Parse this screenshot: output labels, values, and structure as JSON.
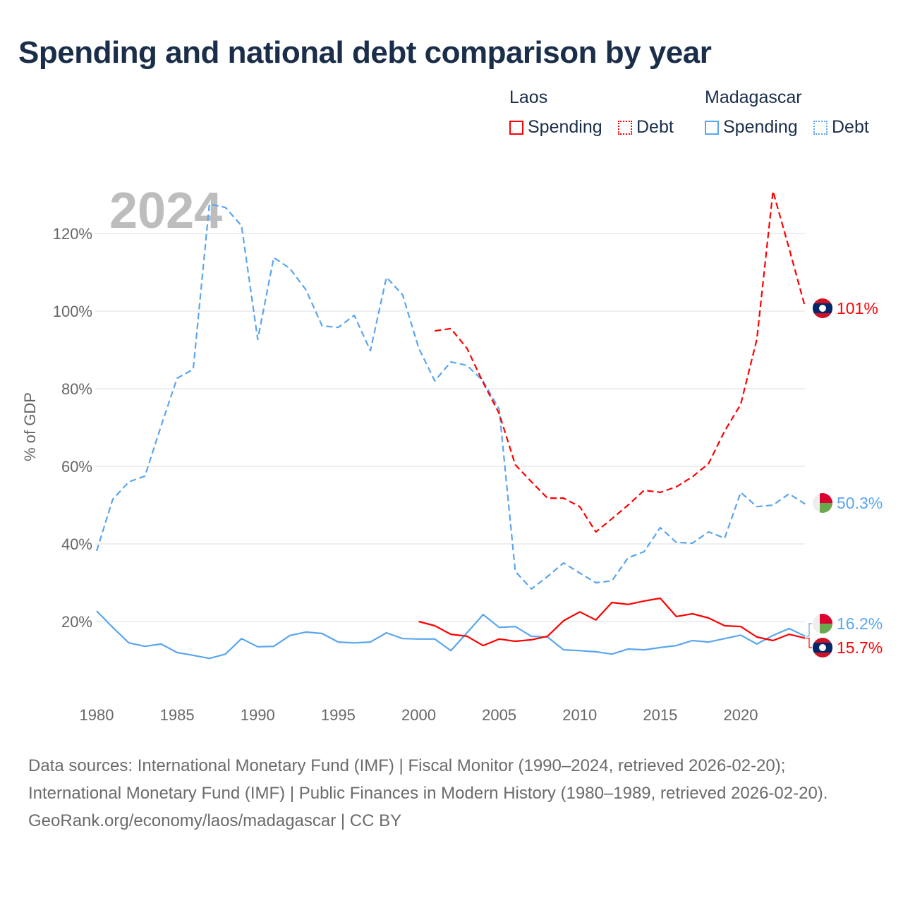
{
  "title": "Spending and national debt comparison by year",
  "legend": {
    "groups": [
      {
        "country": "Laos",
        "items": [
          {
            "label": "Spending",
            "style": "solid"
          },
          {
            "label": "Debt",
            "style": "dotted"
          }
        ],
        "color": "#ff0000"
      },
      {
        "country": "Madagascar",
        "items": [
          {
            "label": "Spending",
            "style": "solid"
          },
          {
            "label": "Debt",
            "style": "dotted"
          }
        ],
        "color": "#5aa6ee"
      }
    ]
  },
  "year_watermark": "2024",
  "footer": {
    "sources": "Data sources: International Monetary Fund (IMF) | Fiscal Monitor (1990–2024, retrieved 2026-02-20); International Monetary Fund (IMF) | Public Finances in Modern History (1980–1989, retrieved 2026-02-20).",
    "credit": "GeoRank.org/economy/laos/madagascar | CC BY"
  },
  "chart_data": {
    "type": "line",
    "title": "Spending and national debt comparison by year",
    "xlabel": "",
    "ylabel": "% of GDP",
    "xlim": [
      1980,
      2024
    ],
    "ylim": [
      0,
      130
    ],
    "grid": true,
    "legend_position": "top-right",
    "x_ticks": [
      1980,
      1985,
      1990,
      1995,
      2000,
      2005,
      2010,
      2015,
      2020
    ],
    "y_ticks": [
      20,
      40,
      60,
      80,
      100,
      120
    ],
    "y_tick_labels": [
      "20%",
      "40%",
      "60%",
      "80%",
      "100%",
      "120%"
    ],
    "series": [
      {
        "name": "Madagascar Debt",
        "country": "Madagascar",
        "color": "#5aa6ee",
        "dash": true,
        "start": 1980,
        "values": [
          38.2,
          51.5,
          56,
          57.5,
          70.4,
          82.7,
          85,
          127.6,
          126.7,
          122,
          92.7,
          113.8,
          111,
          105.5,
          96.2,
          95.8,
          98.9,
          89.8,
          108.7,
          104.2,
          90.5,
          82,
          86.9,
          86,
          82,
          74.7,
          32.9,
          28.4,
          31.6,
          35.1,
          32.5,
          30,
          30.5,
          36.4,
          38,
          44.2,
          40.4,
          40.2,
          43.1,
          41.5,
          53.3,
          49.6,
          50,
          52.9,
          50.3
        ],
        "end_label": "50.3%"
      },
      {
        "name": "Laos Debt",
        "country": "Laos",
        "color": "#ff0000",
        "dash": true,
        "start": 2001,
        "values": [
          94.9,
          95.5,
          90.4,
          81.6,
          73.6,
          60.4,
          56,
          51.8,
          51.8,
          49.6,
          43.1,
          46.5,
          50,
          53.8,
          53.3,
          54.7,
          57.3,
          60.7,
          69.1,
          76,
          92.7,
          130.9,
          116.2,
          101
        ],
        "end_label": "101%"
      },
      {
        "name": "Madagascar Spending",
        "country": "Madagascar",
        "color": "#5aa6ee",
        "dash": false,
        "start": 1980,
        "values": [
          22.7,
          18.5,
          14.5,
          13.6,
          14.2,
          12,
          11.3,
          10.5,
          11.6,
          15.6,
          13.5,
          13.6,
          16.4,
          17.3,
          16.9,
          14.7,
          14.5,
          14.7,
          17.1,
          15.6,
          15.5,
          15.5,
          12.5,
          17.1,
          21.8,
          18.5,
          18.7,
          16.2,
          16,
          12.7,
          12.5,
          12.2,
          11.6,
          12.9,
          12.7,
          13.3,
          13.8,
          15.1,
          14.7,
          15.6,
          16.5,
          14.2,
          16.4,
          18.2,
          16.2
        ],
        "end_label": "16.2%"
      },
      {
        "name": "Laos Spending",
        "country": "Laos",
        "color": "#ff0000",
        "dash": false,
        "start": 2000,
        "values": [
          20,
          18.9,
          16.7,
          16.2,
          13.8,
          15.5,
          14.9,
          15.3,
          16.2,
          20.2,
          22.5,
          20.4,
          24.9,
          24.4,
          25.3,
          26,
          21.3,
          22,
          20.9,
          18.9,
          18.7,
          16,
          15.1,
          16.7,
          15.7
        ],
        "end_label": "15.7%"
      }
    ]
  }
}
